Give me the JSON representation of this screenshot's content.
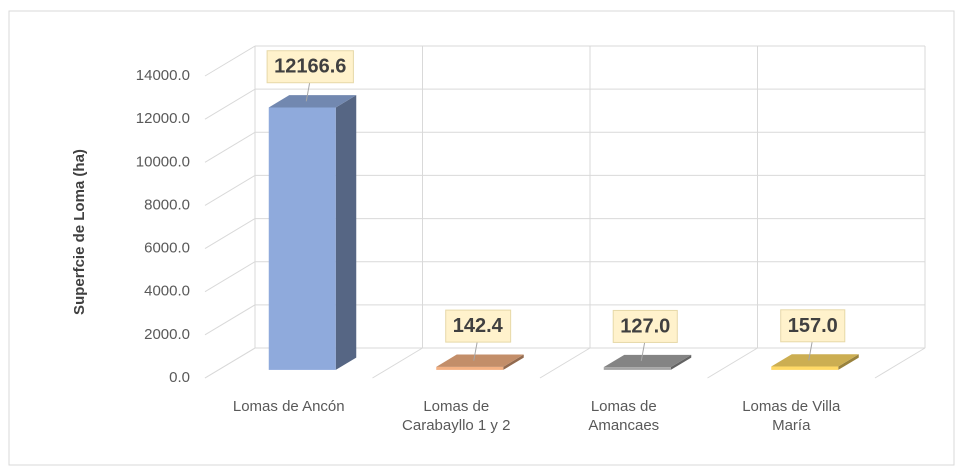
{
  "chart_data": {
    "type": "bar3d",
    "y_label": "Superfcie de Loma (ha)",
    "categories": [
      "Lomas de Ancón",
      "Lomas de Carabayllo 1 y 2",
      "Lomas de Amancaes",
      "Lomas de Villa María"
    ],
    "values": [
      12166.6,
      142.4,
      127.0,
      157.0
    ],
    "value_labels": [
      "12166.6",
      "142.4",
      "127.0",
      "157.0"
    ],
    "colors": [
      "#8faadc",
      "#f4b183",
      "#a5a5a5",
      "#ffd966"
    ],
    "ylim": [
      0,
      14000
    ],
    "yticks": [
      {
        "value": 0,
        "label": "0.0"
      },
      {
        "value": 2000,
        "label": "2000.0"
      },
      {
        "value": 4000,
        "label": "4000.0"
      },
      {
        "value": 6000,
        "label": "6000.0"
      },
      {
        "value": 8000,
        "label": "8000.0"
      },
      {
        "value": 10000,
        "label": "10000.0"
      },
      {
        "value": 12000,
        "label": "12000.0"
      },
      {
        "value": 14000,
        "label": "14000.0"
      }
    ],
    "grid": true
  }
}
